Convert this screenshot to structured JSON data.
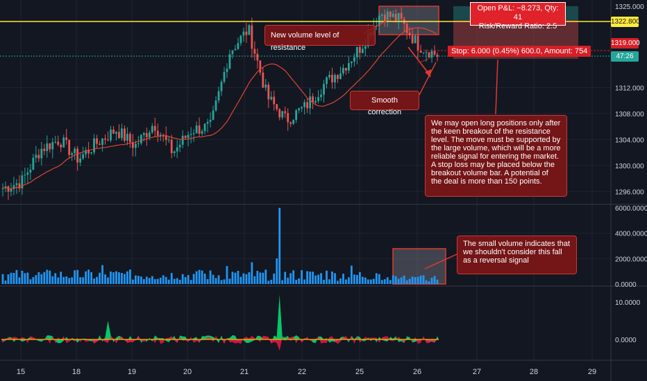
{
  "colors": {
    "background": "#131722",
    "grid": "#1f2433",
    "up": "#26a69a",
    "down": "#ef5350",
    "volume": "#2196f3",
    "ma": "#e0462f",
    "resistance": "#ffeb3b",
    "annotation_fill": "#7e1a1a",
    "annotation_border": "#c83a3a",
    "osc_line_a": "#00e676",
    "osc_line_b": "#ff1744"
  },
  "price_axis": {
    "ticks": [
      "1325.000",
      "1312.000",
      "1308.000",
      "1304.000",
      "1300.000",
      "1296.000"
    ],
    "resistance_label": "1322.800",
    "current_label": "1319.000",
    "countdown_label": "47:26"
  },
  "volume_axis": {
    "ticks": [
      "6000.0000",
      "4000.0000",
      "2000.0000",
      "0.0000"
    ]
  },
  "osc_axis": {
    "ticks": [
      "10.0000",
      "0.0000"
    ]
  },
  "time_axis": {
    "labels": [
      "15",
      "18",
      "19",
      "20",
      "21",
      "22",
      "25",
      "26",
      "27",
      "28",
      "29"
    ]
  },
  "annotations": {
    "resistance_note": "New volume level of resistance",
    "correction_note": "Smooth correction",
    "plan_note": "We may open long positions only after the keen breakout of the resistance level. The move must be supported by the large volume, which will be a more reliable signal for entering the market. A stop loss may be placed below the breakout volume bar. A potential of the deal is more than 150 points.",
    "volume_note": "The small volume indicates that we shouldn't consider this fall as a reversal signal"
  },
  "position": {
    "pl_line1": "Open P&L: −8.273, Qty: 41",
    "pl_line2": "Risk/Reward Ratio: 2.5",
    "stop_label": "Stop: 6.000 (0.45%) 600.0, Amount: 754"
  },
  "chart_data": [
    {
      "type": "candlestick",
      "panel": "price",
      "x_labels": [
        "15",
        "18",
        "19",
        "20",
        "21",
        "22",
        "25",
        "26"
      ],
      "close_path": [
        1296.5,
        1297.5,
        1302.5,
        1304.0,
        1301.0,
        1303.5,
        1305.5,
        1303.0,
        1306.5,
        1302.0,
        1305.5,
        1306.0,
        1317.5,
        1321.0,
        1310.5,
        1307.0,
        1309.0,
        1312.5,
        1315.0,
        1318.5,
        1323.5,
        1322.5,
        1318.5,
        1317.0
      ],
      "ylim": [
        1294.0,
        1325.5
      ],
      "resistance_level": 1322.8,
      "current_price": 1319.0
    },
    {
      "type": "bar",
      "panel": "volume",
      "ylim": [
        0,
        6000
      ],
      "peak_value": 6000
    },
    {
      "type": "area",
      "panel": "oscillator",
      "ylim": [
        -5,
        12
      ],
      "peak_value": 12
    }
  ]
}
